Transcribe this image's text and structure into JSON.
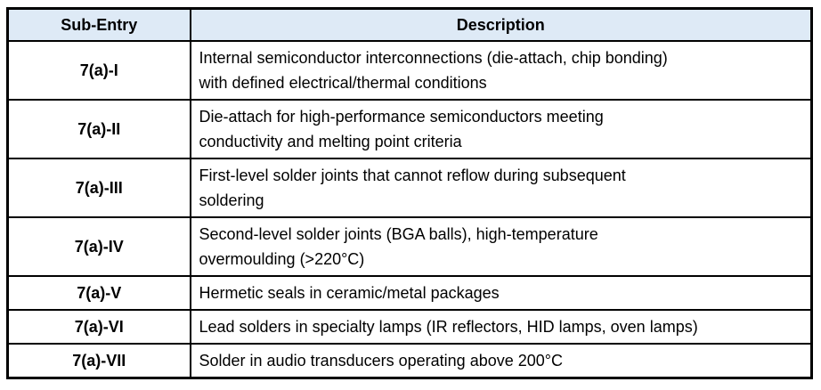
{
  "colors": {
    "header_bg": "#DEEAF6",
    "border": "#000000",
    "text": "#000000"
  },
  "table": {
    "columns": [
      "Sub-Entry",
      "Description"
    ],
    "rows": [
      {
        "entry": "7(a)-I",
        "description": "Internal semiconductor interconnections (die-attach, chip bonding)\nwith defined electrical/thermal conditions"
      },
      {
        "entry": "7(a)-II",
        "description": "Die-attach for high-performance semiconductors meeting\nconductivity and melting point criteria"
      },
      {
        "entry": "7(a)-III",
        "description": "First-level solder joints that cannot reflow during subsequent\nsoldering"
      },
      {
        "entry": "7(a)-IV",
        "description": "Second-level solder joints (BGA balls), high-temperature\novermoulding (>220°C)"
      },
      {
        "entry": "7(a)-V",
        "description": "Hermetic seals in ceramic/metal packages"
      },
      {
        "entry": "7(a)-VI",
        "description": "Lead solders in specialty lamps (IR reflectors, HID lamps, oven lamps)"
      },
      {
        "entry": "7(a)-VII",
        "description": "Solder in audio transducers operating above 200°C"
      }
    ]
  }
}
